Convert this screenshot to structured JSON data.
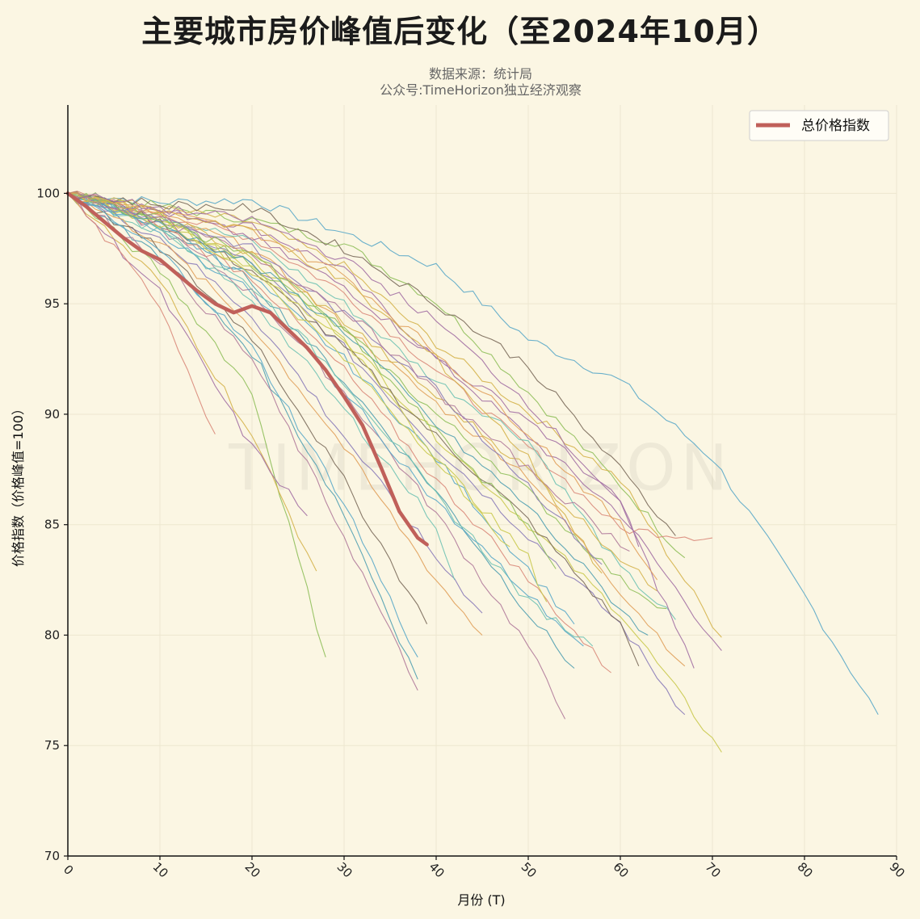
{
  "title": "主要城市房价峰值后变化（至2024年10月）",
  "subtitle_source": "数据来源：统计局",
  "subtitle_account": "公众号:TimeHorizon独立经济观察",
  "watermark": "TIMEHORIZON",
  "colors": {
    "background": "#fbf6e3",
    "index_line": "#c0605a",
    "grid": "#ede7d0",
    "city_palette": [
      "#5aa9c8",
      "#8fbf5a",
      "#d4b24a",
      "#a26fa3",
      "#d98a7a",
      "#6fc2b2",
      "#c9c94d",
      "#8a7bb8",
      "#e0a05a",
      "#7a6a5a",
      "#4f9fb0",
      "#b07a9a"
    ]
  },
  "chart_data": {
    "type": "line",
    "xlabel": "月份 (T)",
    "ylabel": "价格指数（价格峰值=100）",
    "xlim": [
      0,
      90
    ],
    "ylim": [
      70,
      104
    ],
    "xticks": [
      0,
      10,
      20,
      30,
      40,
      50,
      60,
      70,
      80,
      90
    ],
    "yticks": [
      70,
      75,
      80,
      85,
      90,
      95,
      100
    ],
    "grid": true,
    "legend_position": "top-right",
    "index_series": {
      "name": "总价格指数",
      "x": [
        0,
        2,
        4,
        6,
        8,
        10,
        12,
        14,
        16,
        18,
        20,
        22,
        24,
        26,
        28,
        30,
        32,
        34,
        36,
        38,
        39
      ],
      "y": [
        100,
        99.4,
        98.7,
        98.0,
        97.4,
        97.0,
        96.3,
        95.6,
        95.0,
        94.6,
        94.9,
        94.6,
        93.8,
        93.0,
        92.0,
        90.8,
        89.5,
        87.6,
        85.6,
        84.4,
        84.1
      ]
    },
    "city_series": [
      {
        "x": [
          0,
          10,
          20,
          30,
          40,
          50,
          60,
          70,
          80,
          88
        ],
        "y": [
          100,
          99.6,
          99.7,
          98.2,
          96.7,
          93.4,
          91.5,
          88.0,
          81.8,
          76.4
        ]
      },
      {
        "x": [
          0,
          10,
          20,
          30,
          40,
          50,
          60,
          67
        ],
        "y": [
          100,
          99.4,
          98.8,
          97.7,
          95.1,
          91.0,
          86.8,
          83.5
        ]
      },
      {
        "x": [
          0,
          10,
          20,
          30,
          40,
          50,
          60,
          71
        ],
        "y": [
          100,
          99.3,
          98.7,
          96.7,
          93.2,
          90.1,
          87.0,
          79.9
        ]
      },
      {
        "x": [
          0,
          10,
          20,
          30,
          40,
          50,
          60,
          71
        ],
        "y": [
          100,
          99.2,
          98.5,
          96.5,
          92.5,
          89.0,
          85.5,
          79.3
        ]
      },
      {
        "x": [
          0,
          10,
          20,
          30,
          40,
          50,
          60,
          70
        ],
        "y": [
          100,
          99.1,
          98.0,
          95.5,
          92.0,
          88.5,
          84.8,
          84.4
        ]
      },
      {
        "x": [
          0,
          10,
          20,
          30,
          40,
          50,
          60,
          66
        ],
        "y": [
          100,
          99.0,
          97.8,
          95.0,
          91.5,
          88.8,
          83.0,
          80.7
        ]
      },
      {
        "x": [
          0,
          10,
          20,
          30,
          40,
          50,
          60,
          71
        ],
        "y": [
          100,
          98.8,
          97.0,
          93.5,
          89.0,
          85.0,
          81.0,
          74.7
        ]
      },
      {
        "x": [
          0,
          10,
          20,
          30,
          40,
          50,
          60,
          67
        ],
        "y": [
          100,
          98.8,
          96.8,
          93.0,
          88.5,
          84.5,
          80.5,
          76.4
        ]
      },
      {
        "x": [
          0,
          10,
          20,
          30,
          40,
          50,
          60,
          67
        ],
        "y": [
          100,
          99.0,
          97.5,
          94.0,
          90.5,
          87.2,
          82.0,
          78.6
        ]
      },
      {
        "x": [
          0,
          10,
          20,
          30,
          40,
          50,
          60,
          62
        ],
        "y": [
          100,
          98.7,
          96.5,
          93.0,
          89.0,
          85.2,
          80.5,
          78.6
        ]
      },
      {
        "x": [
          0,
          10,
          20,
          30,
          40,
          50,
          55
        ],
        "y": [
          100,
          98.5,
          96.0,
          91.5,
          86.5,
          81.0,
          78.5
        ]
      },
      {
        "x": [
          0,
          10,
          20,
          30,
          40,
          50,
          54
        ],
        "y": [
          100,
          98.4,
          95.5,
          91.0,
          85.5,
          79.5,
          76.2
        ]
      },
      {
        "x": [
          0,
          10,
          20,
          30,
          40,
          50,
          55
        ],
        "y": [
          100,
          98.6,
          96.2,
          92.5,
          88.0,
          83.0,
          80.5
        ]
      },
      {
        "x": [
          0,
          10,
          20,
          30,
          40,
          50,
          60,
          65
        ],
        "y": [
          100,
          98.9,
          96.8,
          93.8,
          90.0,
          86.5,
          82.5,
          81.2
        ]
      },
      {
        "x": [
          0,
          10,
          20,
          30,
          40,
          50,
          60,
          64
        ],
        "y": [
          100,
          99.0,
          97.2,
          94.2,
          90.8,
          87.5,
          83.5,
          82.0
        ]
      },
      {
        "x": [
          0,
          10,
          20,
          30,
          40,
          50,
          60,
          68
        ],
        "y": [
          100,
          99.2,
          98.0,
          95.8,
          92.5,
          89.8,
          86.0,
          78.5
        ]
      },
      {
        "x": [
          0,
          10,
          20,
          30,
          40,
          50,
          59
        ],
        "y": [
          100,
          98.5,
          96.2,
          92.0,
          87.0,
          82.5,
          78.3
        ]
      },
      {
        "x": [
          0,
          10,
          20,
          30,
          40,
          50,
          57
        ],
        "y": [
          100,
          98.3,
          95.8,
          91.5,
          86.3,
          81.5,
          79.5
        ]
      },
      {
        "x": [
          0,
          10,
          20,
          30,
          40,
          50,
          52
        ],
        "y": [
          100,
          98.6,
          96.5,
          92.5,
          88.0,
          83.5,
          81.5
        ]
      },
      {
        "x": [
          0,
          10,
          20,
          30,
          40,
          45
        ],
        "y": [
          100,
          98.0,
          94.5,
          89.0,
          83.5,
          81.0
        ]
      },
      {
        "x": [
          0,
          10,
          20,
          30,
          40,
          45
        ],
        "y": [
          100,
          97.8,
          94.0,
          88.5,
          82.5,
          80.0
        ]
      },
      {
        "x": [
          0,
          10,
          20,
          30,
          39
        ],
        "y": [
          100,
          97.5,
          93.5,
          87.0,
          80.5
        ]
      },
      {
        "x": [
          0,
          10,
          20,
          30,
          38
        ],
        "y": [
          100,
          97.2,
          92.8,
          85.5,
          78.0
        ]
      },
      {
        "x": [
          0,
          10,
          20,
          30,
          38
        ],
        "y": [
          100,
          97.0,
          92.5,
          84.5,
          77.5
        ]
      },
      {
        "x": [
          0,
          10,
          20,
          30,
          38
        ],
        "y": [
          100,
          97.4,
          93.0,
          86.0,
          79.0
        ]
      },
      {
        "x": [
          0,
          10,
          20,
          28
        ],
        "y": [
          100,
          96.5,
          91.0,
          79.0
        ]
      },
      {
        "x": [
          0,
          10,
          20,
          27
        ],
        "y": [
          100,
          96.0,
          89.0,
          82.9
        ]
      },
      {
        "x": [
          0,
          10,
          20,
          26
        ],
        "y": [
          100,
          95.5,
          88.5,
          85.4
        ]
      },
      {
        "x": [
          0,
          10,
          16
        ],
        "y": [
          100,
          95.0,
          89.1
        ]
      },
      {
        "x": [
          0,
          10,
          20,
          30,
          40,
          42
        ],
        "y": [
          100,
          98.3,
          95.2,
          90.2,
          85.0,
          82.5
        ]
      },
      {
        "x": [
          0,
          10,
          20,
          30,
          40,
          48
        ],
        "y": [
          100,
          98.8,
          96.6,
          93.3,
          88.0,
          84.0
        ]
      },
      {
        "x": [
          0,
          10,
          20,
          30,
          40,
          50,
          58
        ],
        "y": [
          100,
          98.9,
          97.5,
          94.5,
          91.2,
          86.8,
          83.2
        ]
      },
      {
        "x": [
          0,
          10,
          20,
          30,
          40,
          50,
          60,
          64
        ],
        "y": [
          100,
          99.1,
          98.3,
          96.3,
          92.8,
          89.2,
          85.0,
          82.5
        ]
      },
      {
        "x": [
          0,
          10,
          20,
          30,
          40,
          50,
          60,
          66
        ],
        "y": [
          100,
          99.5,
          99.3,
          97.5,
          95.0,
          92.2,
          87.5,
          84.5
        ]
      },
      {
        "x": [
          0,
          10,
          20,
          30,
          40,
          50,
          60,
          63
        ],
        "y": [
          100,
          98.6,
          96.8,
          93.8,
          89.5,
          85.8,
          81.2,
          80.0
        ]
      },
      {
        "x": [
          0,
          10,
          20,
          30,
          40,
          50,
          61
        ],
        "y": [
          100,
          98.8,
          97.2,
          94.8,
          91.0,
          87.5,
          83.8
        ]
      },
      {
        "x": [
          0,
          10,
          20,
          30,
          40,
          50,
          56
        ],
        "y": [
          100,
          98.2,
          95.5,
          91.0,
          86.0,
          81.8,
          79.5
        ]
      },
      {
        "x": [
          0,
          10,
          20,
          30,
          40,
          50,
          53
        ],
        "y": [
          100,
          98.7,
          97.3,
          93.8,
          89.2,
          85.0,
          83.0
        ]
      },
      {
        "x": [
          0,
          10,
          20,
          30,
          40,
          50,
          58
        ],
        "y": [
          100,
          99.2,
          98.4,
          96.0,
          92.5,
          88.0,
          82.8
        ]
      },
      {
        "x": [
          0,
          10,
          20,
          30,
          40,
          50,
          60,
          62
        ],
        "y": [
          100,
          99.3,
          98.8,
          97.0,
          94.2,
          90.5,
          86.0,
          84.0
        ]
      }
    ]
  },
  "legend": {
    "label": "总价格指数"
  }
}
